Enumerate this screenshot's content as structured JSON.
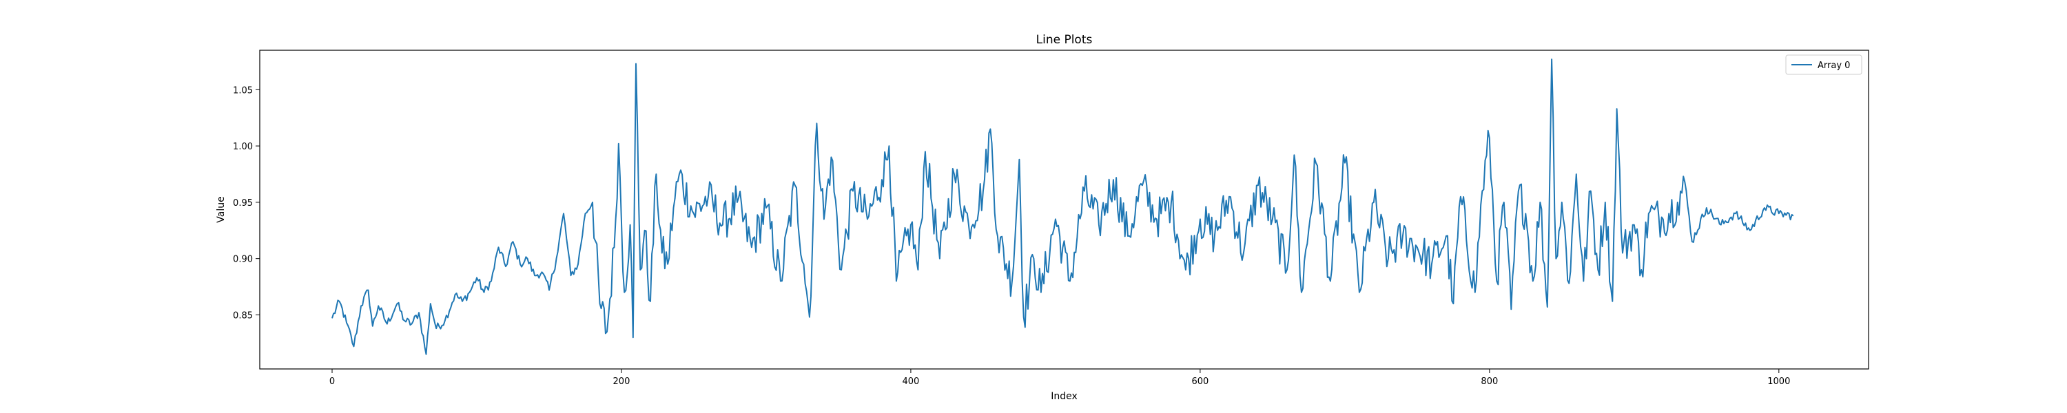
{
  "chart_data": {
    "type": "line",
    "title": "Line Plots",
    "xlabel": "Index",
    "ylabel": "Value",
    "xlim": [
      -50,
      1062
    ],
    "ylim": [
      0.802,
      1.085
    ],
    "xticks": [
      0,
      200,
      400,
      600,
      800,
      1000
    ],
    "xtick_labels": [
      "0",
      "200",
      "400",
      "600",
      "800",
      "1000"
    ],
    "yticks": [
      0.85,
      0.9,
      0.95,
      1.0,
      1.05
    ],
    "ytick_labels": [
      "0.85",
      "0.90",
      "0.95",
      "1.00",
      "1.05"
    ],
    "grid": false,
    "legend_position": "upper right",
    "series": [
      {
        "name": "Array 0",
        "color": "#1f77b4",
        "anchors": [
          [
            0,
            0.847
          ],
          [
            5,
            0.862
          ],
          [
            10,
            0.843
          ],
          [
            15,
            0.822
          ],
          [
            20,
            0.858
          ],
          [
            25,
            0.872
          ],
          [
            28,
            0.84
          ],
          [
            32,
            0.858
          ],
          [
            38,
            0.842
          ],
          [
            45,
            0.86
          ],
          [
            50,
            0.845
          ],
          [
            55,
            0.842
          ],
          [
            60,
            0.852
          ],
          [
            65,
            0.815
          ],
          [
            68,
            0.86
          ],
          [
            72,
            0.838
          ],
          [
            78,
            0.845
          ],
          [
            85,
            0.868
          ],
          [
            90,
            0.862
          ],
          [
            95,
            0.87
          ],
          [
            100,
            0.883
          ],
          [
            105,
            0.87
          ],
          [
            110,
            0.88
          ],
          [
            115,
            0.91
          ],
          [
            120,
            0.893
          ],
          [
            125,
            0.915
          ],
          [
            130,
            0.895
          ],
          [
            135,
            0.9
          ],
          [
            140,
            0.885
          ],
          [
            145,
            0.888
          ],
          [
            150,
            0.872
          ],
          [
            155,
            0.9
          ],
          [
            160,
            0.94
          ],
          [
            165,
            0.885
          ],
          [
            170,
            0.895
          ],
          [
            175,
            0.94
          ],
          [
            180,
            0.95
          ],
          [
            185,
            0.86
          ],
          [
            190,
            0.835
          ],
          [
            195,
            0.91
          ],
          [
            198,
            1.002
          ],
          [
            202,
            0.87
          ],
          [
            206,
            0.93
          ],
          [
            208,
            0.83
          ],
          [
            210,
            1.073
          ],
          [
            213,
            0.89
          ],
          [
            216,
            0.925
          ],
          [
            220,
            0.862
          ],
          [
            224,
            0.975
          ],
          [
            228,
            0.905
          ],
          [
            232,
            0.895
          ],
          [
            236,
            0.945
          ],
          [
            240,
            0.975
          ],
          [
            250,
            0.94
          ],
          [
            260,
            0.955
          ],
          [
            270,
            0.93
          ],
          [
            280,
            0.95
          ],
          [
            290,
            0.91
          ],
          [
            300,
            0.945
          ],
          [
            310,
            0.88
          ],
          [
            320,
            0.965
          ],
          [
            326,
            0.895
          ],
          [
            330,
            0.848
          ],
          [
            335,
            1.02
          ],
          [
            340,
            0.935
          ],
          [
            345,
            0.99
          ],
          [
            352,
            0.89
          ],
          [
            360,
            0.96
          ],
          [
            370,
            0.935
          ],
          [
            380,
            0.97
          ],
          [
            385,
            1.0
          ],
          [
            390,
            0.88
          ],
          [
            400,
            0.93
          ],
          [
            405,
            0.89
          ],
          [
            410,
            0.995
          ],
          [
            420,
            0.9
          ],
          [
            430,
            0.975
          ],
          [
            440,
            0.93
          ],
          [
            450,
            0.96
          ],
          [
            455,
            1.015
          ],
          [
            460,
            0.92
          ],
          [
            470,
            0.88
          ],
          [
            475,
            0.988
          ],
          [
            478,
            0.848
          ],
          [
            485,
            0.9
          ],
          [
            490,
            0.87
          ],
          [
            500,
            0.935
          ],
          [
            510,
            0.88
          ],
          [
            520,
            0.96
          ],
          [
            530,
            0.93
          ],
          [
            540,
            0.97
          ],
          [
            550,
            0.92
          ],
          [
            560,
            0.965
          ],
          [
            570,
            0.935
          ],
          [
            580,
            0.95
          ],
          [
            590,
            0.89
          ],
          [
            600,
            0.935
          ],
          [
            610,
            0.92
          ],
          [
            620,
            0.955
          ],
          [
            630,
            0.905
          ],
          [
            640,
            0.965
          ],
          [
            650,
            0.935
          ],
          [
            660,
            0.89
          ],
          [
            665,
            0.992
          ],
          [
            670,
            0.87
          ],
          [
            680,
            0.985
          ],
          [
            690,
            0.88
          ],
          [
            700,
            0.985
          ],
          [
            710,
            0.87
          ],
          [
            720,
            0.95
          ],
          [
            730,
            0.9
          ],
          [
            740,
            0.92
          ],
          [
            750,
            0.91
          ],
          [
            760,
            0.895
          ],
          [
            770,
            0.92
          ],
          [
            775,
            0.86
          ],
          [
            780,
            0.955
          ],
          [
            790,
            0.87
          ],
          [
            795,
            0.96
          ],
          [
            800,
            1.007
          ],
          [
            805,
            0.88
          ],
          [
            810,
            0.95
          ],
          [
            815,
            0.855
          ],
          [
            820,
            0.96
          ],
          [
            825,
            0.94
          ],
          [
            830,
            0.88
          ],
          [
            835,
            0.95
          ],
          [
            840,
            0.857
          ],
          [
            843,
            1.077
          ],
          [
            846,
            0.9
          ],
          [
            850,
            0.95
          ],
          [
            855,
            0.878
          ],
          [
            860,
            0.975
          ],
          [
            865,
            0.88
          ],
          [
            870,
            0.96
          ],
          [
            875,
            0.89
          ],
          [
            880,
            0.95
          ],
          [
            885,
            0.862
          ],
          [
            888,
            1.033
          ],
          [
            892,
            0.905
          ],
          [
            900,
            0.93
          ],
          [
            905,
            0.89
          ],
          [
            910,
            0.94
          ],
          [
            920,
            0.935
          ],
          [
            930,
            0.95
          ],
          [
            935,
            0.968
          ],
          [
            940,
            0.915
          ],
          [
            950,
            0.945
          ],
          [
            960,
            0.93
          ],
          [
            970,
            0.94
          ],
          [
            980,
            0.925
          ],
          [
            990,
            0.945
          ],
          [
            1000,
            0.94
          ],
          [
            1010,
            0.938
          ]
        ]
      }
    ]
  }
}
